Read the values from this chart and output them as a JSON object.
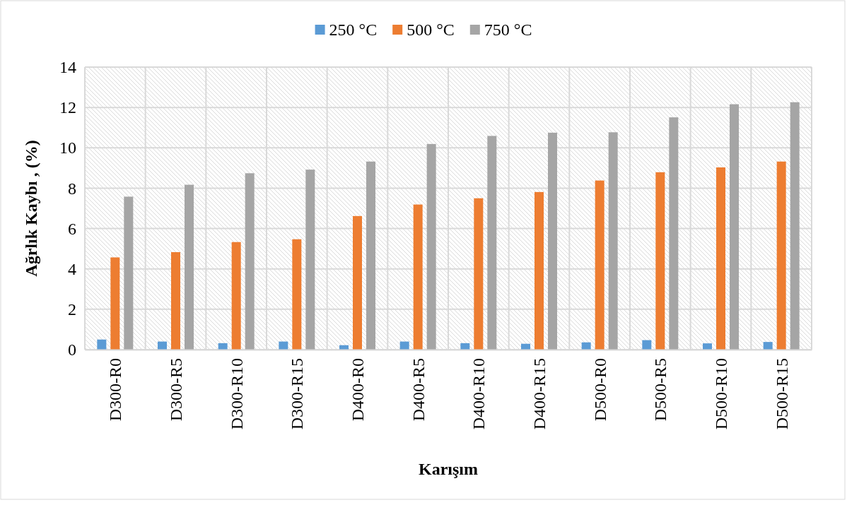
{
  "chart_data": {
    "type": "bar",
    "xlabel": "Karışım",
    "ylabel": "Ağrlık Kaybı , (%)",
    "categories": [
      "D300-R0",
      "D300-R5",
      "D300-R10",
      "D300-R15",
      "D400-R0",
      "D400-R5",
      "D400-R10",
      "D400-R15",
      "D500-R0",
      "D500-R5",
      "D500-R10",
      "D500-R15"
    ],
    "series": [
      {
        "name": "250 °C",
        "color": "#5b9bd5",
        "values": [
          0.5,
          0.4,
          0.32,
          0.4,
          0.22,
          0.4,
          0.32,
          0.29,
          0.36,
          0.47,
          0.31,
          0.38
        ]
      },
      {
        "name": "500 °C",
        "color": "#ed7d31",
        "values": [
          4.57,
          4.83,
          5.33,
          5.47,
          6.62,
          7.19,
          7.5,
          7.81,
          8.38,
          8.79,
          9.03,
          9.32
        ]
      },
      {
        "name": "750 °C",
        "color": "#a5a5a5",
        "values": [
          7.58,
          8.17,
          8.74,
          8.92,
          9.32,
          10.19,
          10.59,
          10.75,
          10.77,
          11.51,
          12.16,
          12.26
        ]
      }
    ],
    "ylim": [
      0,
      14
    ],
    "yticks": [
      0,
      2,
      4,
      6,
      8,
      10,
      12,
      14
    ],
    "grid": true,
    "legend": "top"
  }
}
